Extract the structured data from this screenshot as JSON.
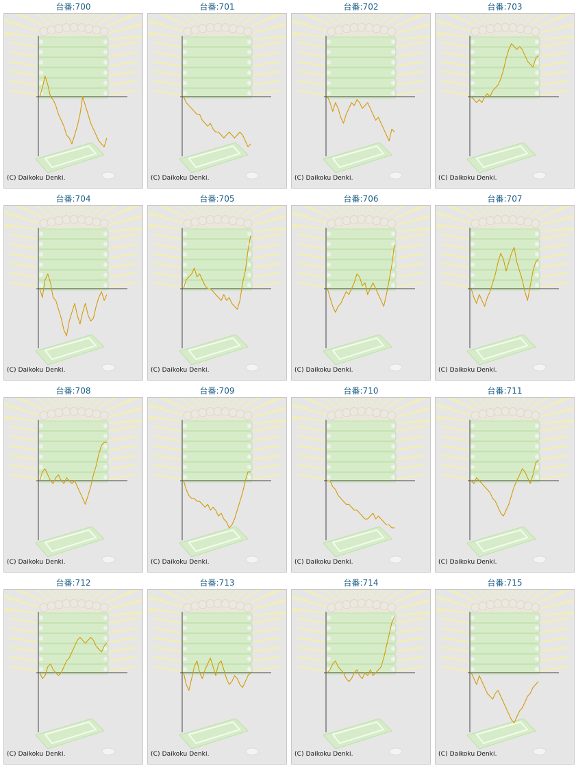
{
  "copyright": "(C) Daikoku Denki.",
  "line_color": "#d49a06",
  "title_color": "#1c5f86",
  "machines": [
    {
      "title": "台番:700"
    },
    {
      "title": "台番:701"
    },
    {
      "title": "台番:702"
    },
    {
      "title": "台番:703"
    },
    {
      "title": "台番:704"
    },
    {
      "title": "台番:705"
    },
    {
      "title": "台番:706"
    },
    {
      "title": "台番:707"
    },
    {
      "title": "台番:708"
    },
    {
      "title": "台番:709"
    },
    {
      "title": "台番:710"
    },
    {
      "title": "台番:711"
    },
    {
      "title": "台番:712"
    },
    {
      "title": "台番:713"
    },
    {
      "title": "台番:714"
    },
    {
      "title": "台番:715"
    }
  ],
  "chart_data": [
    {
      "type": "line",
      "title": "台番:700",
      "y_direction": "up_positive",
      "series": [
        {
          "values": [
            0,
            3,
            7,
            4,
            0,
            -1,
            -3,
            -6,
            -8,
            -10,
            -13,
            -14,
            -16,
            -13,
            -10,
            -6,
            0,
            -3,
            -6,
            -9,
            -11,
            -13,
            -15,
            -16,
            -17,
            -14
          ]
        }
      ]
    },
    {
      "type": "line",
      "title": "台番:701",
      "y_direction": "up_positive",
      "series": [
        {
          "values": [
            0,
            -2,
            -3,
            -4,
            -5,
            -6,
            -6,
            -8,
            -9,
            -10,
            -9,
            -11,
            -12,
            -12,
            -13,
            -14,
            -13,
            -12,
            -13,
            -14,
            -13,
            -12,
            -13,
            -15,
            -17,
            -16
          ]
        }
      ]
    },
    {
      "type": "line",
      "title": "台番:702",
      "y_direction": "up_positive",
      "series": [
        {
          "values": [
            0,
            -2,
            -5,
            -2,
            -4,
            -7,
            -9,
            -6,
            -4,
            -2,
            -3,
            -1,
            -2,
            -4,
            -3,
            -2,
            -4,
            -6,
            -8,
            -7,
            -9,
            -11,
            -13,
            -15,
            -11,
            -12
          ]
        }
      ]
    },
    {
      "type": "line",
      "title": "台番:703",
      "y_direction": "up_positive",
      "series": [
        {
          "values": [
            0,
            -1,
            -2,
            -1,
            -2,
            0,
            1,
            0,
            2,
            3,
            4,
            6,
            9,
            13,
            16,
            18,
            17,
            16,
            17,
            16,
            14,
            12,
            11,
            10,
            13,
            14
          ]
        }
      ]
    },
    {
      "type": "line",
      "title": "台番:704",
      "y_direction": "up_positive",
      "series": [
        {
          "values": [
            0,
            -3,
            3,
            5,
            2,
            -3,
            -4,
            -7,
            -10,
            -14,
            -16,
            -11,
            -8,
            -5,
            -9,
            -12,
            -8,
            -5,
            -9,
            -11,
            -10,
            -6,
            -3,
            -1,
            -4,
            -2
          ]
        }
      ]
    },
    {
      "type": "line",
      "title": "台番:705",
      "y_direction": "up_positive",
      "series": [
        {
          "values": [
            0,
            3,
            4,
            5,
            7,
            4,
            5,
            3,
            1,
            0,
            0,
            -1,
            -2,
            -3,
            -4,
            -2,
            -4,
            -3,
            -5,
            -6,
            -7,
            -4,
            2,
            6,
            13,
            18
          ]
        }
      ]
    },
    {
      "type": "line",
      "title": "台番:706",
      "y_direction": "up_positive",
      "series": [
        {
          "values": [
            0,
            -3,
            -6,
            -8,
            -6,
            -5,
            -3,
            -1,
            -2,
            0,
            2,
            5,
            4,
            1,
            2,
            -2,
            0,
            2,
            0,
            -2,
            -4,
            -6,
            -2,
            3,
            8,
            15
          ]
        }
      ]
    },
    {
      "type": "line",
      "title": "台番:707",
      "y_direction": "up_positive",
      "series": [
        {
          "values": [
            0,
            -3,
            -5,
            -2,
            -4,
            -6,
            -3,
            -1,
            2,
            5,
            9,
            12,
            10,
            6,
            9,
            12,
            14,
            9,
            6,
            3,
            -1,
            -4,
            1,
            6,
            9,
            10
          ]
        }
      ]
    },
    {
      "type": "line",
      "title": "台番:708",
      "y_direction": "up_positive",
      "series": [
        {
          "values": [
            0,
            3,
            4,
            2,
            0,
            -1,
            1,
            2,
            0,
            -1,
            1,
            0,
            -1,
            0,
            -2,
            -4,
            -6,
            -8,
            -5,
            -2,
            2,
            5,
            9,
            12,
            13,
            13
          ]
        }
      ]
    },
    {
      "type": "line",
      "title": "台番:709",
      "y_direction": "up_positive",
      "series": [
        {
          "values": [
            0,
            -3,
            -5,
            -6,
            -6,
            -7,
            -7,
            -8,
            -9,
            -8,
            -10,
            -9,
            -10,
            -12,
            -11,
            -13,
            -14,
            -16,
            -15,
            -13,
            -10,
            -7,
            -4,
            0,
            3,
            3
          ]
        }
      ]
    },
    {
      "type": "line",
      "title": "台番:710",
      "y_direction": "up_positive",
      "series": [
        {
          "values": [
            0,
            0,
            -2,
            -3,
            -5,
            -6,
            -7,
            -8,
            -8,
            -9,
            -10,
            -10,
            -11,
            -12,
            -13,
            -13,
            -12,
            -11,
            -13,
            -12,
            -13,
            -14,
            -15,
            -15,
            -16,
            -16
          ]
        }
      ]
    },
    {
      "type": "line",
      "title": "台番:711",
      "y_direction": "up_positive",
      "series": [
        {
          "values": [
            0,
            -1,
            1,
            0,
            -1,
            -2,
            -3,
            -4,
            -6,
            -7,
            -9,
            -11,
            -12,
            -10,
            -8,
            -5,
            -2,
            0,
            2,
            4,
            3,
            1,
            -1,
            2,
            6,
            7
          ]
        }
      ]
    },
    {
      "type": "line",
      "title": "台番:712",
      "y_direction": "up_positive",
      "series": [
        {
          "values": [
            0,
            -2,
            -1,
            2,
            3,
            1,
            0,
            -1,
            0,
            2,
            4,
            5,
            7,
            9,
            11,
            12,
            11,
            10,
            11,
            12,
            11,
            9,
            8,
            7,
            9,
            10
          ]
        }
      ]
    },
    {
      "type": "line",
      "title": "台番:713",
      "y_direction": "up_positive",
      "series": [
        {
          "values": [
            0,
            -4,
            -6,
            -2,
            2,
            4,
            0,
            -2,
            1,
            3,
            5,
            2,
            -1,
            3,
            4,
            1,
            -2,
            -4,
            -3,
            -1,
            -2,
            -4,
            -5,
            -3,
            -1,
            0
          ]
        }
      ]
    },
    {
      "type": "line",
      "title": "台番:714",
      "y_direction": "up_positive",
      "series": [
        {
          "values": [
            0,
            1,
            3,
            4,
            2,
            1,
            0,
            -2,
            -3,
            -2,
            0,
            1,
            -1,
            -2,
            0,
            -1,
            1,
            -1,
            0,
            1,
            2,
            5,
            9,
            13,
            17,
            19
          ]
        }
      ]
    },
    {
      "type": "line",
      "title": "台番:715",
      "y_direction": "up_positive",
      "series": [
        {
          "values": [
            0,
            -2,
            -4,
            -1,
            -3,
            -5,
            -7,
            -8,
            -9,
            -7,
            -6,
            -8,
            -10,
            -12,
            -14,
            -16,
            -17,
            -15,
            -13,
            -12,
            -10,
            -8,
            -7,
            -5,
            -4,
            -3
          ]
        }
      ]
    }
  ]
}
